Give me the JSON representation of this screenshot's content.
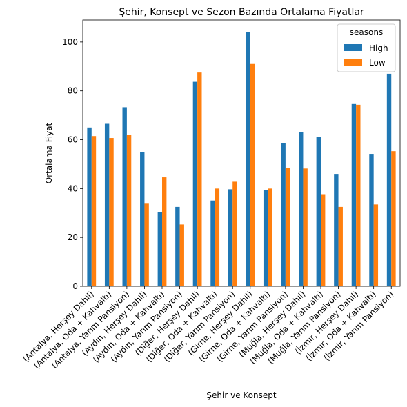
{
  "chart_data": {
    "type": "bar",
    "title": "Şehir, Konsept ve Sezon Bazında Ortalama Fiyatlar",
    "xlabel": "Şehir ve Konsept",
    "ylabel": "Ortalama Fiyat",
    "ylim": [
      0,
      109
    ],
    "yticks": [
      0,
      20,
      40,
      60,
      80,
      100
    ],
    "grid": false,
    "legend": {
      "title": "seasons",
      "position": "top-right"
    },
    "categories": [
      "(Antalya, Herşey Dahil)",
      "(Antalya, Oda + Kahvaltı)",
      "(Antalya, Yarım Pansiyon)",
      "(Aydın, Herşey Dahil)",
      "(Aydın, Oda + Kahvaltı)",
      "(Aydın, Yarım Pansiyon)",
      "(Diğer, Herşey Dahil)",
      "(Diğer, Oda + Kahvaltı)",
      "(Diğer, Yarım Pansiyon)",
      "(Girne, Herşey Dahil)",
      "(Girne, Oda + Kahvaltı)",
      "(Girne, Yarım Pansiyon)",
      "(Muğla, Herşey Dahil)",
      "(Muğla, Oda + Kahvaltı)",
      "(Muğla, Yarım Pansiyon)",
      "(İzmir, Herşey Dahil)",
      "(İzmir, Oda + Kahvaltı)",
      "(İzmir, Yarım Pansiyon)"
    ],
    "series": [
      {
        "name": "High",
        "color": "#1f77b4",
        "values": [
          65,
          66.5,
          73.3,
          55,
          30.3,
          32.5,
          83.7,
          35.1,
          39.7,
          104,
          39.4,
          58.5,
          63.2,
          61.2,
          46,
          74.6,
          54.2,
          87
        ]
      },
      {
        "name": "Low",
        "color": "#ff7f0e",
        "values": [
          61.5,
          60.7,
          62.1,
          33.8,
          44.6,
          25.3,
          87.5,
          40,
          42.8,
          91,
          40,
          48.5,
          48.2,
          37.7,
          32.5,
          74.3,
          33.5,
          55.3
        ]
      }
    ]
  }
}
